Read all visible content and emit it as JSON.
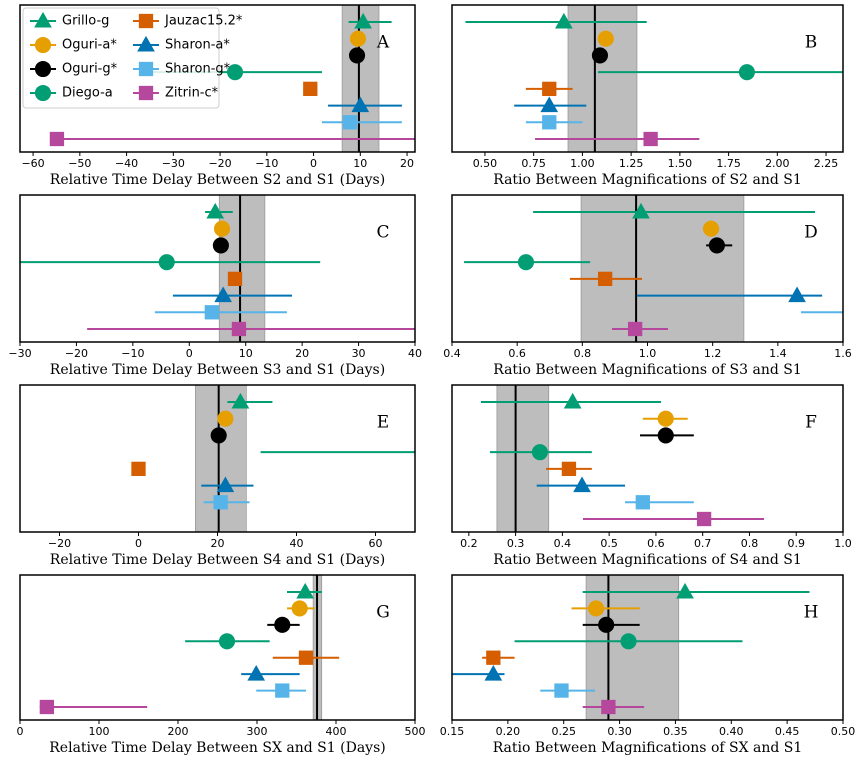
{
  "legend": [
    {
      "name": "Grillo-g",
      "color": "#029e73",
      "marker": "triangle"
    },
    {
      "name": "Oguri-a*",
      "color": "#e69f00",
      "marker": "circle"
    },
    {
      "name": "Oguri-g*",
      "color": "#000000",
      "marker": "circle"
    },
    {
      "name": "Diego-a",
      "color": "#029e73",
      "marker": "circle"
    },
    {
      "name": "Jauzac15.2*",
      "color": "#d55e00",
      "marker": "square"
    },
    {
      "name": "Sharon-a*",
      "color": "#0173b2",
      "marker": "triangle"
    },
    {
      "name": "Sharon-g*",
      "color": "#56b4e9",
      "marker": "square"
    },
    {
      "name": "Zitrin-c*",
      "color": "#b5479c",
      "marker": "square"
    }
  ],
  "chart_data": [
    {
      "type": "errorbar",
      "label": "A",
      "xlabel": "Relative Time Delay Between S2 and S1 (Days)",
      "xlim": [
        -62.8,
        21.7
      ],
      "xticks": [
        {
          "value": -60,
          "label": "−60"
        },
        {
          "value": -50,
          "label": "−50"
        },
        {
          "value": -40,
          "label": "−40"
        },
        {
          "value": -30,
          "label": "−30"
        },
        {
          "value": -20,
          "label": "−20"
        },
        {
          "value": -10,
          "label": "−10"
        },
        0,
        10,
        20
      ],
      "values": [
        10.6,
        9.5,
        9.3,
        -16.8,
        -0.7,
        10,
        7.8,
        -54.9
      ],
      "lower": [
        7.5,
        null,
        null,
        -35.6,
        null,
        3.1,
        1.8,
        -56.4
      ],
      "upper": [
        16.7,
        null,
        null,
        1.8,
        null,
        18.9,
        18.9,
        30
      ],
      "reference": 9.7,
      "band": [
        6.1,
        14.0
      ]
    },
    {
      "type": "errorbar",
      "label": "B",
      "xlabel": "Ratio Between Magnifications of S2 and S1",
      "xlim": [
        0.331,
        2.337
      ],
      "xticks": [
        {
          "value": 0.5,
          "label": "0.50"
        },
        0.75,
        {
          "value": 1,
          "label": "1.00"
        },
        1.25,
        {
          "value": 1.5,
          "label": "1.50"
        },
        1.75,
        {
          "value": 2,
          "label": "2.00"
        },
        2.25
      ],
      "values": [
        0.905,
        1.12,
        1.09,
        1.844,
        0.83,
        0.83,
        0.83,
        1.35
      ],
      "lower": [
        0.4,
        null,
        1.07,
        1.08,
        0.71,
        0.65,
        0.71,
        0.757
      ],
      "upper": [
        1.33,
        null,
        1.11,
        2.5,
        0.95,
        1.02,
        1.0,
        1.6
      ],
      "reference": 1.064,
      "band": [
        0.926,
        1.28
      ]
    },
    {
      "type": "errorbar",
      "label": "C",
      "xlabel": "Relative Time Delay Between S3 and S1 (Days)",
      "xlim": [
        -30,
        40
      ],
      "xticks": [
        {
          "value": -30,
          "label": "−30"
        },
        {
          "value": -20,
          "label": "−20"
        },
        {
          "value": -10,
          "label": "−10"
        },
        0,
        10,
        20,
        30,
        40
      ],
      "values": [
        4.6,
        5.8,
        5.6,
        -4.0,
        8.1,
        6.0,
        4.0,
        8.8
      ],
      "lower": [
        2.8,
        null,
        null,
        -30,
        6.9,
        -2.9,
        -6.1,
        -18.1
      ],
      "upper": [
        7.7,
        null,
        null,
        23.2,
        9.3,
        18.2,
        17.3,
        45
      ],
      "reference": 9.0,
      "band": [
        5.3,
        13.4
      ]
    },
    {
      "type": "errorbar",
      "label": "D",
      "xlabel": "Ratio Between Magnifications of S3 and S1",
      "xlim": [
        0.4,
        1.6
      ],
      "xticks": [
        0.4,
        0.6,
        0.8,
        {
          "value": 1,
          "label": "1.0"
        },
        1.2,
        1.4,
        1.6
      ],
      "values": [
        0.98,
        1.195,
        1.213,
        0.627,
        0.87,
        1.459,
        null,
        0.962
      ],
      "lower": [
        0.649,
        1.17,
        1.18,
        0.437,
        0.762,
        0.968,
        1.471,
        0.891
      ],
      "upper": [
        1.514,
        1.22,
        1.26,
        0.824,
        0.983,
        1.536,
        1.7,
        1.063
      ],
      "reference": 0.965,
      "band": [
        0.796,
        1.296
      ]
    },
    {
      "type": "errorbar",
      "label": "E",
      "xlabel": "Relative Time Delay Between S4 and S1 (Days)",
      "xlim": [
        -30,
        70
      ],
      "xticks": [
        {
          "value": -20,
          "label": "−20"
        },
        0,
        20,
        40,
        60
      ],
      "values": [
        25.8,
        22.0,
        20.3,
        null,
        0,
        22.0,
        20.8,
        null
      ],
      "lower": [
        22.5,
        null,
        null,
        30.9,
        null,
        15.9,
        16.5,
        null
      ],
      "upper": [
        33.9,
        null,
        null,
        80,
        null,
        29.1,
        28.1,
        null
      ],
      "reference": 20.3,
      "band": [
        14.4,
        27.3
      ]
    },
    {
      "type": "errorbar",
      "label": "F",
      "xlabel": "Ratio Between Magnifications of S4 and S1",
      "xlim": [
        0.164,
        1.0
      ],
      "xticks": [
        0.2,
        0.3,
        0.4,
        0.5,
        0.6,
        0.7,
        0.8,
        0.9,
        {
          "value": 1,
          "label": "1.0"
        }
      ],
      "values": [
        0.422,
        0.621,
        0.621,
        0.352,
        0.414,
        0.442,
        0.572,
        0.703
      ],
      "lower": [
        0.226,
        0.572,
        0.566,
        0.245,
        0.365,
        0.345,
        0.534,
        0.444
      ],
      "upper": [
        0.611,
        0.668,
        0.681,
        0.463,
        0.463,
        0.534,
        0.681,
        0.831
      ],
      "reference": 0.3,
      "band": [
        0.26,
        0.371
      ]
    },
    {
      "type": "errorbar",
      "label": "G",
      "xlabel": "Relative Time Delay Between SX and S1 (Days)",
      "xlim": [
        0,
        500
      ],
      "xticks": [
        0,
        100,
        200,
        300,
        400,
        500
      ],
      "values": [
        361,
        354,
        332,
        262,
        362,
        299,
        332,
        34
      ],
      "lower": [
        338,
        338,
        313,
        209,
        320,
        280,
        299,
        25
      ],
      "upper": [
        382,
        373,
        354,
        316,
        404,
        354,
        362,
        161
      ],
      "reference": 376,
      "band": [
        371,
        382
      ]
    },
    {
      "type": "errorbar",
      "label": "H",
      "xlabel": "Ratio Between Magnifications of SX and S1",
      "xlim": [
        0.15,
        0.5
      ],
      "xticks": [
        0.15,
        {
          "value": 0.2,
          "label": "0.20"
        },
        0.25,
        {
          "value": 0.3,
          "label": "0.30"
        },
        0.35,
        {
          "value": 0.4,
          "label": "0.40"
        },
        0.45,
        {
          "value": 0.5,
          "label": "0.50"
        }
      ],
      "values": [
        0.3586,
        0.279,
        0.288,
        0.308,
        0.187,
        0.187,
        0.248,
        0.29
      ],
      "lower": [
        0.267,
        0.257,
        0.267,
        0.206,
        0.177,
        0.14,
        0.229,
        0.267
      ],
      "upper": [
        0.47,
        0.318,
        0.318,
        0.41,
        0.206,
        0.197,
        0.278,
        0.322
      ],
      "reference": 0.29,
      "band": [
        0.27,
        0.353
      ]
    }
  ]
}
